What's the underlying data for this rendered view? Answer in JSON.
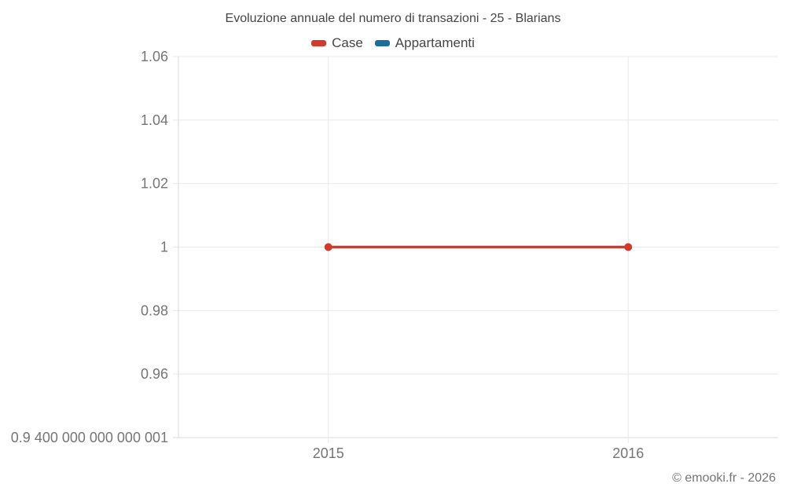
{
  "page": {
    "background": "#ffffff",
    "footer": "© emooki.fr - 2026"
  },
  "chart_data": {
    "type": "line",
    "title": "Evoluzione annuale del numero di transazioni - 25 - Blarians",
    "categories": [
      "2015",
      "2016"
    ],
    "series": [
      {
        "name": "Case",
        "color": "#d33a2c",
        "values": [
          1,
          1
        ]
      },
      {
        "name": "Appartamenti",
        "color": "#1a6d9c",
        "values": []
      }
    ],
    "ylim": [
      0.94,
      1.06
    ],
    "ytick_values": [
      1.06,
      1.04,
      1.02,
      1,
      0.98,
      0.96,
      0.94
    ],
    "ytick_labels": [
      "1.06",
      "1.04",
      "1.02",
      "1",
      "0.98",
      "0.96",
      "0.9 400 000 000 000 001"
    ],
    "grid": true,
    "legend_position": "top",
    "marker": "circle",
    "colors": {
      "gridline": "#e8e8e8",
      "axis": "#d9d9d9",
      "tick_text": "#757575",
      "title_text": "#454545"
    }
  }
}
